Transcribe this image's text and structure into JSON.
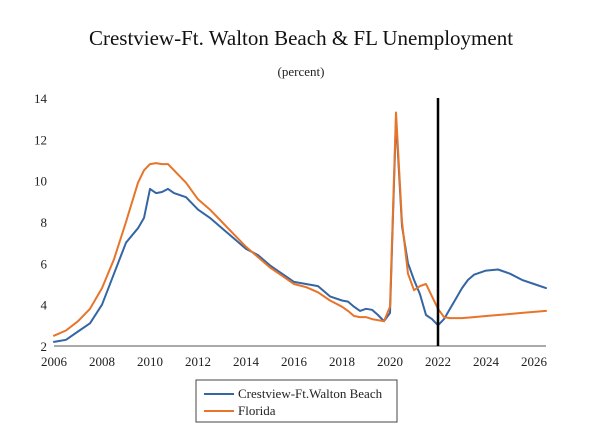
{
  "chart_data": {
    "type": "line",
    "title": "Crestview-Ft. Walton Beach & FL Unemployment",
    "subtitle": "(percent)",
    "xlabel": "",
    "ylabel": "",
    "xlim": [
      2006,
      2026.5
    ],
    "ylim": [
      2,
      14
    ],
    "x_ticks": [
      2006,
      2008,
      2010,
      2012,
      2014,
      2016,
      2018,
      2020,
      2022,
      2024,
      2026
    ],
    "y_ticks": [
      2,
      4,
      6,
      8,
      10,
      12,
      14
    ],
    "grid": false,
    "legend_position": "bottom",
    "vertical_marker_x": 2022,
    "series": [
      {
        "name": "Crestview-Ft.Walton Beach",
        "color": "#3465a4",
        "points": [
          [
            2006.0,
            2.2
          ],
          [
            2006.5,
            2.3
          ],
          [
            2007.0,
            2.7
          ],
          [
            2007.5,
            3.1
          ],
          [
            2008.0,
            4.0
          ],
          [
            2008.5,
            5.5
          ],
          [
            2009.0,
            7.0
          ],
          [
            2009.5,
            7.7
          ],
          [
            2009.75,
            8.2
          ],
          [
            2010.0,
            9.6
          ],
          [
            2010.25,
            9.4
          ],
          [
            2010.5,
            9.45
          ],
          [
            2010.75,
            9.6
          ],
          [
            2011.0,
            9.4
          ],
          [
            2011.5,
            9.2
          ],
          [
            2012.0,
            8.6
          ],
          [
            2012.5,
            8.2
          ],
          [
            2013.0,
            7.7
          ],
          [
            2013.5,
            7.2
          ],
          [
            2014.0,
            6.7
          ],
          [
            2014.5,
            6.4
          ],
          [
            2015.0,
            5.9
          ],
          [
            2015.5,
            5.5
          ],
          [
            2016.0,
            5.1
          ],
          [
            2016.5,
            5.0
          ],
          [
            2017.0,
            4.9
          ],
          [
            2017.5,
            4.4
          ],
          [
            2018.0,
            4.2
          ],
          [
            2018.25,
            4.15
          ],
          [
            2018.5,
            3.9
          ],
          [
            2018.75,
            3.7
          ],
          [
            2019.0,
            3.8
          ],
          [
            2019.25,
            3.75
          ],
          [
            2019.5,
            3.5
          ],
          [
            2019.75,
            3.2
          ],
          [
            2020.0,
            3.6
          ],
          [
            2020.25,
            13.0
          ],
          [
            2020.5,
            7.8
          ],
          [
            2020.75,
            6.0
          ],
          [
            2021.0,
            5.2
          ],
          [
            2021.25,
            4.5
          ],
          [
            2021.5,
            3.5
          ],
          [
            2021.75,
            3.3
          ],
          [
            2022.0,
            3.0
          ],
          [
            2022.25,
            3.3
          ],
          [
            2022.5,
            3.8
          ],
          [
            2022.75,
            4.3
          ],
          [
            2023.0,
            4.8
          ],
          [
            2023.25,
            5.2
          ],
          [
            2023.5,
            5.45
          ],
          [
            2024.0,
            5.65
          ],
          [
            2024.5,
            5.7
          ],
          [
            2025.0,
            5.5
          ],
          [
            2025.5,
            5.2
          ],
          [
            2026.0,
            5.0
          ],
          [
            2026.5,
            4.8
          ]
        ]
      },
      {
        "name": "Florida",
        "color": "#e8742a",
        "points": [
          [
            2006.0,
            2.5
          ],
          [
            2006.5,
            2.75
          ],
          [
            2007.0,
            3.2
          ],
          [
            2007.5,
            3.8
          ],
          [
            2008.0,
            4.8
          ],
          [
            2008.5,
            6.2
          ],
          [
            2009.0,
            8.0
          ],
          [
            2009.5,
            9.9
          ],
          [
            2009.75,
            10.5
          ],
          [
            2010.0,
            10.8
          ],
          [
            2010.25,
            10.85
          ],
          [
            2010.5,
            10.8
          ],
          [
            2010.75,
            10.8
          ],
          [
            2011.0,
            10.5
          ],
          [
            2011.5,
            9.9
          ],
          [
            2012.0,
            9.1
          ],
          [
            2012.5,
            8.6
          ],
          [
            2013.0,
            8.0
          ],
          [
            2013.5,
            7.4
          ],
          [
            2014.0,
            6.8
          ],
          [
            2014.5,
            6.3
          ],
          [
            2015.0,
            5.8
          ],
          [
            2015.5,
            5.4
          ],
          [
            2016.0,
            5.0
          ],
          [
            2016.5,
            4.85
          ],
          [
            2017.0,
            4.6
          ],
          [
            2017.5,
            4.2
          ],
          [
            2018.0,
            3.9
          ],
          [
            2018.25,
            3.7
          ],
          [
            2018.5,
            3.45
          ],
          [
            2018.75,
            3.4
          ],
          [
            2019.0,
            3.4
          ],
          [
            2019.25,
            3.3
          ],
          [
            2019.5,
            3.25
          ],
          [
            2019.75,
            3.2
          ],
          [
            2020.0,
            3.9
          ],
          [
            2020.25,
            13.3
          ],
          [
            2020.5,
            8.0
          ],
          [
            2020.75,
            5.5
          ],
          [
            2021.0,
            4.7
          ],
          [
            2021.25,
            4.9
          ],
          [
            2021.5,
            5.0
          ],
          [
            2021.75,
            4.4
          ],
          [
            2022.0,
            3.8
          ],
          [
            2022.25,
            3.4
          ],
          [
            2022.5,
            3.35
          ],
          [
            2023.0,
            3.35
          ],
          [
            2023.5,
            3.4
          ],
          [
            2024.0,
            3.45
          ],
          [
            2024.5,
            3.5
          ],
          [
            2025.0,
            3.55
          ],
          [
            2025.5,
            3.6
          ],
          [
            2026.0,
            3.65
          ],
          [
            2026.5,
            3.7
          ]
        ]
      }
    ]
  }
}
